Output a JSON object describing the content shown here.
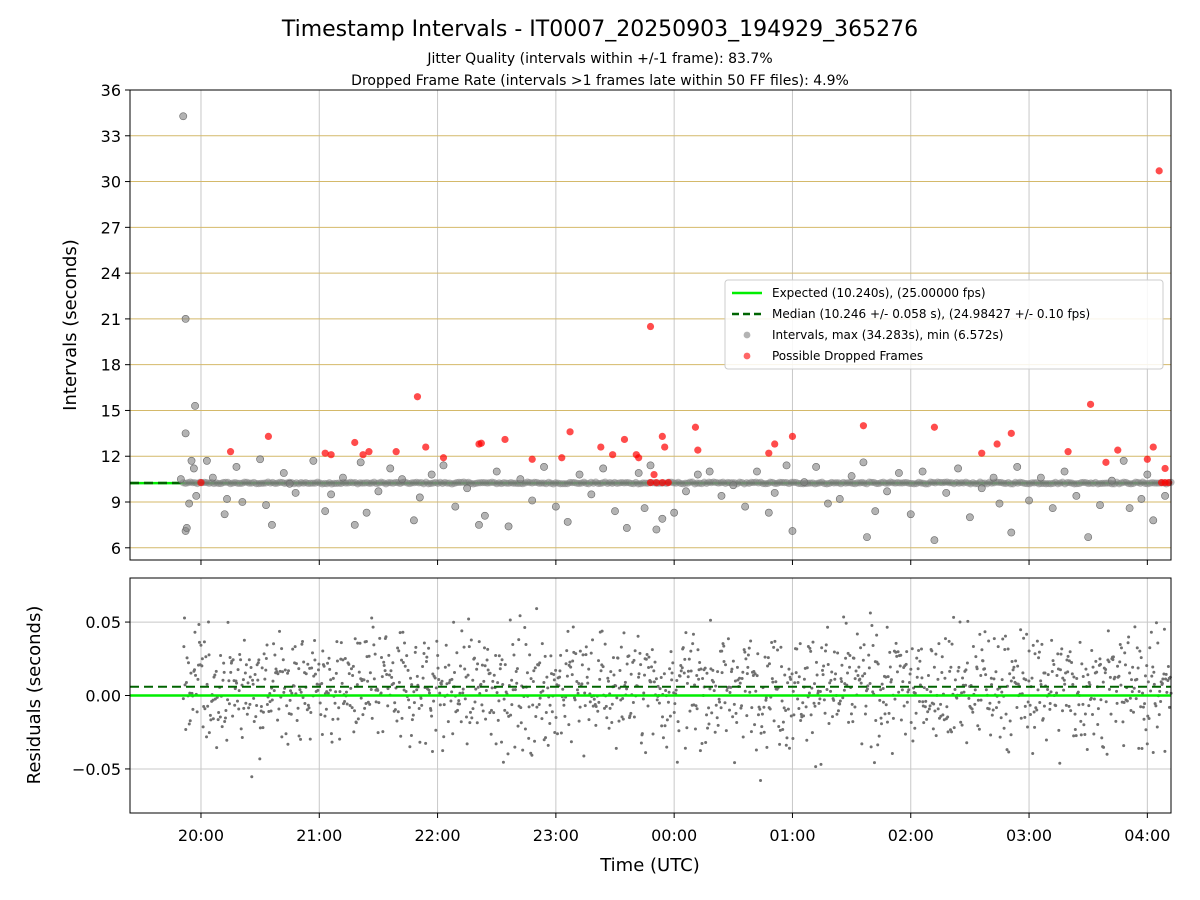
{
  "chart_data": {
    "title": "Timestamp Intervals - IT0007_20250903_194929_365276",
    "subtitle_lines": [
      "Jitter Quality (intervals within +/-1 frame): 83.7%",
      "Dropped Frame Rate (intervals >1 frames late within 50 FF files): 4.9%"
    ],
    "xlabel": "Time (UTC)",
    "x_unit": "hours",
    "x_range": [
      19.4,
      28.2
    ],
    "x_ticks": [
      {
        "value": 20,
        "label": "20:00"
      },
      {
        "value": 21,
        "label": "21:00"
      },
      {
        "value": 22,
        "label": "22:00"
      },
      {
        "value": 23,
        "label": "23:00"
      },
      {
        "value": 24,
        "label": "00:00"
      },
      {
        "value": 25,
        "label": "01:00"
      },
      {
        "value": 26,
        "label": "02:00"
      },
      {
        "value": 27,
        "label": "03:00"
      },
      {
        "value": 28,
        "label": "04:00"
      }
    ],
    "colors": {
      "expected": "#00ee00",
      "median": "#006400",
      "intervals": "#808080",
      "dropped": "#ff0000",
      "hgrid_top": "#d4b96a",
      "grid": "#c8c8c8"
    },
    "top_panel": {
      "type": "scatter",
      "ylabel": "Intervals (seconds)",
      "ylim": [
        5.2,
        36
      ],
      "y_ticks": [
        6,
        9,
        12,
        15,
        18,
        21,
        24,
        27,
        30,
        33,
        36
      ],
      "expected_line": 10.24,
      "median_line": 10.246,
      "series": [
        {
          "name": "Intervals, max (34.283s), min (6.572s)",
          "type": "scatter",
          "points": [
            [
              19.85,
              34.28
            ],
            [
              19.87,
              21.0
            ],
            [
              19.87,
              13.5
            ],
            [
              19.95,
              15.3
            ],
            [
              19.87,
              7.1
            ],
            [
              19.88,
              7.3
            ],
            [
              19.9,
              8.9
            ],
            [
              19.92,
              11.7
            ],
            [
              19.94,
              11.2
            ],
            [
              19.83,
              10.5
            ],
            [
              19.96,
              9.4
            ],
            [
              20.05,
              11.7
            ],
            [
              20.1,
              10.6
            ],
            [
              20.2,
              8.2
            ],
            [
              20.22,
              9.2
            ],
            [
              20.3,
              11.3
            ],
            [
              20.35,
              9.0
            ],
            [
              20.5,
              11.8
            ],
            [
              20.55,
              8.8
            ],
            [
              20.6,
              7.5
            ],
            [
              20.7,
              10.9
            ],
            [
              20.75,
              10.2
            ],
            [
              20.8,
              9.6
            ],
            [
              20.95,
              11.7
            ],
            [
              21.05,
              8.4
            ],
            [
              21.1,
              9.5
            ],
            [
              21.2,
              10.6
            ],
            [
              21.3,
              7.5
            ],
            [
              21.35,
              11.6
            ],
            [
              21.4,
              8.3
            ],
            [
              21.5,
              9.7
            ],
            [
              21.6,
              11.2
            ],
            [
              21.7,
              10.5
            ],
            [
              21.8,
              7.8
            ],
            [
              21.85,
              9.3
            ],
            [
              21.95,
              10.8
            ],
            [
              22.05,
              11.4
            ],
            [
              22.15,
              8.7
            ],
            [
              22.25,
              9.9
            ],
            [
              22.35,
              7.5
            ],
            [
              22.4,
              8.1
            ],
            [
              22.5,
              11.0
            ],
            [
              22.6,
              7.4
            ],
            [
              22.7,
              10.5
            ],
            [
              22.8,
              9.1
            ],
            [
              22.9,
              11.3
            ],
            [
              23.0,
              8.7
            ],
            [
              23.1,
              7.7
            ],
            [
              23.2,
              10.8
            ],
            [
              23.3,
              9.5
            ],
            [
              23.4,
              11.2
            ],
            [
              23.5,
              8.4
            ],
            [
              23.6,
              7.3
            ],
            [
              23.7,
              10.9
            ],
            [
              23.75,
              8.6
            ],
            [
              23.8,
              11.4
            ],
            [
              23.85,
              7.2
            ],
            [
              23.9,
              7.9
            ],
            [
              24.0,
              8.3
            ],
            [
              24.1,
              9.7
            ],
            [
              24.2,
              10.8
            ],
            [
              24.3,
              11.0
            ],
            [
              24.4,
              9.4
            ],
            [
              24.5,
              10.1
            ],
            [
              24.6,
              8.7
            ],
            [
              24.7,
              11.0
            ],
            [
              24.8,
              8.3
            ],
            [
              24.85,
              9.6
            ],
            [
              24.95,
              11.4
            ],
            [
              25.0,
              7.1
            ],
            [
              25.1,
              10.3
            ],
            [
              25.2,
              11.3
            ],
            [
              25.3,
              8.9
            ],
            [
              25.4,
              9.2
            ],
            [
              25.5,
              10.7
            ],
            [
              25.6,
              11.6
            ],
            [
              25.63,
              6.7
            ],
            [
              25.7,
              8.4
            ],
            [
              25.8,
              9.7
            ],
            [
              25.9,
              10.9
            ],
            [
              26.0,
              8.2
            ],
            [
              26.1,
              11.0
            ],
            [
              26.2,
              6.5
            ],
            [
              26.3,
              9.6
            ],
            [
              26.4,
              11.2
            ],
            [
              26.5,
              8.0
            ],
            [
              26.6,
              9.9
            ],
            [
              26.7,
              10.6
            ],
            [
              26.75,
              8.9
            ],
            [
              26.85,
              7.0
            ],
            [
              26.9,
              11.3
            ],
            [
              27.0,
              9.1
            ],
            [
              27.1,
              10.6
            ],
            [
              27.2,
              8.6
            ],
            [
              27.3,
              11.0
            ],
            [
              27.4,
              9.4
            ],
            [
              27.5,
              6.7
            ],
            [
              27.6,
              8.8
            ],
            [
              27.7,
              10.4
            ],
            [
              27.8,
              11.7
            ],
            [
              27.85,
              8.6
            ],
            [
              27.95,
              9.2
            ],
            [
              28.0,
              10.8
            ],
            [
              28.05,
              7.8
            ],
            [
              28.15,
              9.4
            ]
          ]
        },
        {
          "name": "Possible Dropped Frames",
          "type": "scatter",
          "points": [
            [
              20.0,
              10.27
            ],
            [
              20.25,
              12.3
            ],
            [
              20.57,
              13.3
            ],
            [
              21.05,
              12.2
            ],
            [
              21.1,
              12.1
            ],
            [
              21.3,
              12.9
            ],
            [
              21.37,
              12.1
            ],
            [
              21.42,
              12.3
            ],
            [
              21.65,
              12.3
            ],
            [
              21.83,
              15.9
            ],
            [
              21.9,
              12.6
            ],
            [
              22.05,
              11.9
            ],
            [
              22.35,
              12.8
            ],
            [
              22.37,
              12.85
            ],
            [
              22.57,
              13.1
            ],
            [
              22.8,
              11.8
            ],
            [
              23.05,
              11.9
            ],
            [
              23.12,
              13.6
            ],
            [
              23.38,
              12.6
            ],
            [
              23.48,
              12.1
            ],
            [
              23.58,
              13.1
            ],
            [
              23.68,
              12.1
            ],
            [
              23.7,
              11.9
            ],
            [
              23.8,
              20.5
            ],
            [
              23.83,
              10.8
            ],
            [
              23.9,
              13.3
            ],
            [
              23.92,
              12.6
            ],
            [
              24.18,
              13.9
            ],
            [
              24.2,
              12.4
            ],
            [
              24.8,
              12.2
            ],
            [
              24.85,
              12.8
            ],
            [
              25.0,
              13.3
            ],
            [
              25.6,
              14.0
            ],
            [
              26.2,
              13.9
            ],
            [
              26.6,
              12.2
            ],
            [
              26.73,
              12.8
            ],
            [
              26.85,
              13.5
            ],
            [
              27.33,
              12.3
            ],
            [
              27.52,
              15.4
            ],
            [
              27.65,
              11.6
            ],
            [
              27.75,
              12.4
            ],
            [
              28.0,
              11.8
            ],
            [
              28.05,
              12.6
            ],
            [
              28.1,
              30.7
            ],
            [
              28.15,
              11.2
            ],
            [
              23.8,
              10.27
            ],
            [
              23.85,
              10.27
            ],
            [
              23.9,
              10.27
            ],
            [
              23.95,
              10.27
            ],
            [
              28.12,
              10.27
            ],
            [
              28.15,
              10.27
            ],
            [
              28.18,
              10.27
            ]
          ]
        }
      ],
      "legend": {
        "placement": "center-right",
        "entries": [
          {
            "label": "Expected (10.240s), (25.00000 fps)",
            "marker": "line",
            "color": "#00ee00"
          },
          {
            "label": "Median (10.246 +/- 0.058 s), (24.98427 +/- 0.10 fps)",
            "marker": "dashed",
            "color": "#006400"
          },
          {
            "label": "Intervals, max (34.283s), min (6.572s)",
            "marker": "dot",
            "color": "#808080"
          },
          {
            "label": "Possible Dropped Frames",
            "marker": "dot",
            "color": "#ff0000"
          }
        ]
      }
    },
    "bottom_panel": {
      "type": "scatter",
      "ylabel": "Residuals (seconds)",
      "ylim": [
        -0.08,
        0.08
      ],
      "y_ticks": [
        {
          "value": 0.05,
          "label": "0.05"
        },
        {
          "value": 0.0,
          "label": "0.00"
        },
        {
          "value": -0.05,
          "label": "−0.05"
        }
      ],
      "expected_line": 0.0,
      "median_line": 0.006,
      "residual_spread": 0.02,
      "residual_count": 1500
    }
  }
}
